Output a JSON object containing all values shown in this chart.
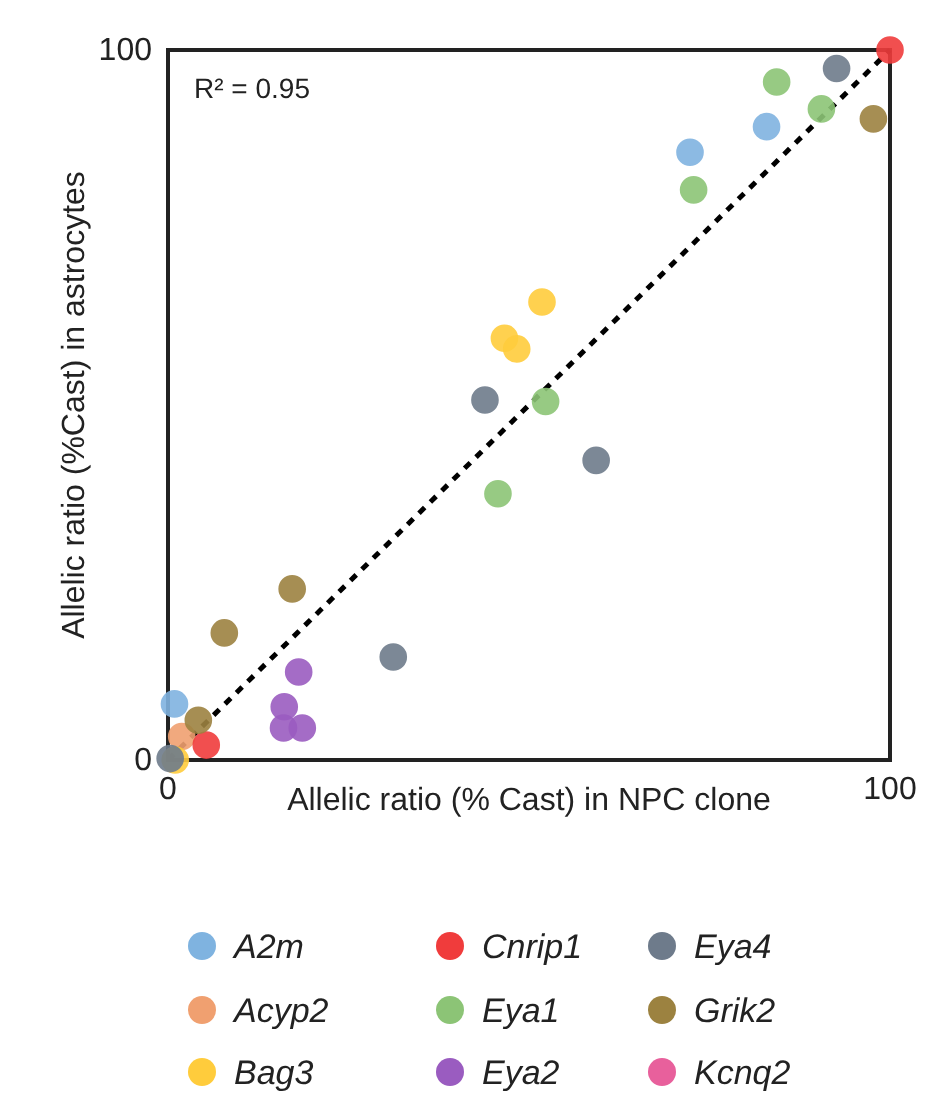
{
  "chart_data": {
    "type": "scatter",
    "xlabel": "Allelic ratio (% Cast) in NPC clone",
    "ylabel": "Allelic ratio (%Cast) in astrocytes",
    "xlim": [
      0,
      100
    ],
    "ylim": [
      0,
      100
    ],
    "xticks": [
      0,
      100
    ],
    "yticks": [
      0,
      100
    ],
    "legend": "bottom",
    "marker": "circle",
    "annotations": [
      "R² = 0.95"
    ],
    "series": [
      {
        "name": "A2m",
        "color": "#7fb3e0",
        "x": [
          82.9,
          72.3,
          0.9
        ],
        "values": [
          89.2,
          85.6,
          7.9
        ]
      },
      {
        "name": "Acyp2",
        "color": "#f0a070",
        "x": [
          1.9
        ],
        "values": [
          3.3
        ]
      },
      {
        "name": "Bag3",
        "color": "#ffcc3c",
        "x": [
          51.8,
          46.6,
          48.3,
          1
        ],
        "values": [
          64.5,
          59.4,
          57.9,
          0
        ]
      },
      {
        "name": "Cnrip1",
        "color": "#f03c3c",
        "x": [
          100,
          5.3
        ],
        "values": [
          100,
          2.1
        ]
      },
      {
        "name": "Eya1",
        "color": "#8cc476",
        "x": [
          84.3,
          90.5,
          72.8,
          52.3,
          45.7
        ],
        "values": [
          95.5,
          91.7,
          80.3,
          50.5,
          37.5
        ]
      },
      {
        "name": "Eya2",
        "color": "#9a5cc0",
        "x": [
          18.1,
          16.1,
          16.0,
          18.6
        ],
        "values": [
          12.4,
          7.5,
          4.5,
          4.5
        ]
      },
      {
        "name": "Eya4",
        "color": "#6e7b8b",
        "x": [
          92.6,
          43.9,
          59.3,
          31.2,
          0.3
        ],
        "values": [
          97.4,
          50.7,
          42.2,
          14.5,
          0.2
        ]
      },
      {
        "name": "Grik2",
        "color": "#9c8240",
        "x": [
          97.7,
          17.2,
          7.8,
          4.2
        ],
        "values": [
          90.3,
          24.1,
          17.9,
          5.6
        ]
      },
      {
        "name": "Kcnq2",
        "color": "#e8609c"
      },
      {
        "type": "line",
        "color": "#000000",
        "line_style": "dashed",
        "marker": "none",
        "x": [
          0,
          100
        ],
        "values": [
          0,
          100
        ]
      }
    ]
  }
}
